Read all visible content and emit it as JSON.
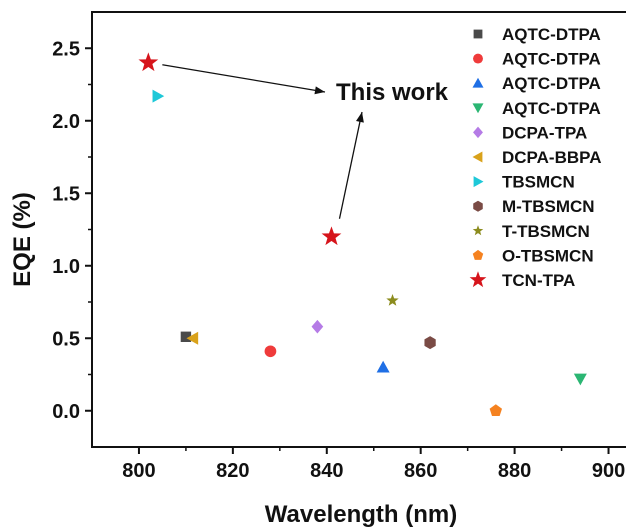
{
  "chart_data": {
    "type": "scatter",
    "xlabel": "Wavelength (nm)",
    "ylabel": "EQE (%)",
    "xlim": [
      790,
      905
    ],
    "ylim": [
      -0.25,
      2.75
    ],
    "xticks": [
      800,
      820,
      840,
      860,
      880,
      900
    ],
    "yticks": [
      0.0,
      0.5,
      1.0,
      1.5,
      2.0,
      2.5
    ],
    "grid": false,
    "legend_position": "top-right",
    "series": [
      {
        "name": "AQTC-DTPA",
        "marker": "square",
        "color": "#4a4a4a",
        "x": 810,
        "y": 0.51
      },
      {
        "name": "AQTC-DTPA",
        "marker": "circle",
        "color": "#ef3b3b",
        "x": 828,
        "y": 0.41
      },
      {
        "name": "AQTC-DTPA",
        "marker": "triangle-up",
        "color": "#1f6fe5",
        "x": 852,
        "y": 0.3
      },
      {
        "name": "AQTC-DTPA",
        "marker": "triangle-down",
        "color": "#2bb673",
        "x": 894,
        "y": 0.22
      },
      {
        "name": "DCPA-TPA",
        "marker": "diamond",
        "color": "#b57be6",
        "x": 838,
        "y": 0.58
      },
      {
        "name": "DCPA-BBPA",
        "marker": "triangle-left",
        "color": "#d9a21b",
        "x": 811.5,
        "y": 0.5
      },
      {
        "name": "TBSMCN",
        "marker": "triangle-right",
        "color": "#1ec8d8",
        "x": 804,
        "y": 2.17
      },
      {
        "name": "M-TBSMCN",
        "marker": "hexagon",
        "color": "#7a4b45",
        "x": 862,
        "y": 0.47
      },
      {
        "name": "T-TBSMCN",
        "marker": "star-small",
        "color": "#8c8c1e",
        "x": 854,
        "y": 0.76
      },
      {
        "name": "O-TBSMCN",
        "marker": "pentagon",
        "color": "#f58220",
        "x": 876,
        "y": 0.0
      },
      {
        "name": "TCN-TPA",
        "marker": "star",
        "color": "#d6141b",
        "x": 802,
        "y": 2.4
      },
      {
        "name": "TCN-TPA",
        "marker": "star",
        "color": "#d6141b",
        "x": 841,
        "y": 1.2
      }
    ],
    "annotations": [
      {
        "text": "This work",
        "x": 853,
        "y": 2.15,
        "arrows_to": [
          [
            802,
            2.4
          ],
          [
            841,
            1.2
          ]
        ]
      }
    ]
  }
}
